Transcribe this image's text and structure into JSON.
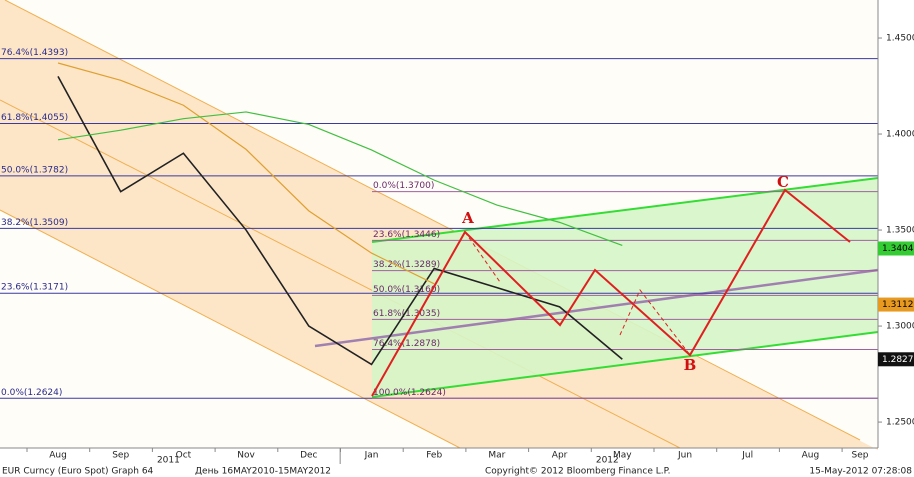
{
  "chart_data": {
    "type": "line",
    "categories": [
      "Aug",
      "Sep",
      "Oct",
      "Nov",
      "Dec",
      "Jan",
      "Feb",
      "Mar",
      "Apr",
      "May",
      "Jun",
      "Jul",
      "Aug",
      "Sep"
    ],
    "year_labels": [
      "2011",
      "2012"
    ],
    "series": [
      {
        "name": "EUR Curncy (Euro Spot)",
        "color": "#222222",
        "values": [
          1.43,
          1.37,
          1.39,
          1.35,
          1.3,
          1.28,
          1.33,
          1.32,
          1.31,
          1.2827,
          null,
          null,
          null,
          null
        ]
      },
      {
        "name": "MA orange",
        "color": "#e0a030",
        "values": [
          1.437,
          1.428,
          1.415,
          1.392,
          1.36,
          1.338,
          1.322,
          null,
          null,
          null,
          null,
          null,
          null,
          null
        ]
      },
      {
        "name": "MA green",
        "color": "#40c040",
        "values": [
          1.397,
          1.402,
          1.408,
          1.4115,
          1.405,
          1.3917,
          1.376,
          1.363,
          1.354,
          1.342,
          null,
          null,
          null,
          null
        ]
      }
    ],
    "ylim": [
      1.2365,
      1.4698
    ],
    "yticks": [
      {
        "value": 1.25,
        "label": "1.2500"
      },
      {
        "value": 1.3,
        "label": "1.3000"
      },
      {
        "value": 1.35,
        "label": "1.3500"
      },
      {
        "value": 1.4,
        "label": "1.4000"
      },
      {
        "value": 1.45,
        "label": "1.4500"
      }
    ],
    "fib_left": [
      {
        "label": "76.4%(1.4393)",
        "value": 1.4393
      },
      {
        "label": "61.8%(1.4055)",
        "value": 1.4055
      },
      {
        "label": "50.0%(1.3782)",
        "value": 1.3782
      },
      {
        "label": "38.2%(1.3509)",
        "value": 1.3509
      },
      {
        "label": "23.6%(1.3171)",
        "value": 1.3171
      },
      {
        "label": "0.0%(1.2624)",
        "value": 1.2624
      }
    ],
    "fib_right": [
      {
        "label": "0.0%(1.3700)",
        "value": 1.37
      },
      {
        "label": "23.6%(1.3446)",
        "value": 1.3446
      },
      {
        "label": "38.2%(1.3289)",
        "value": 1.3289
      },
      {
        "label": "50.0%(1.3160)",
        "value": 1.316
      },
      {
        "label": "61.8%(1.3035)",
        "value": 1.3035
      },
      {
        "label": "76.4%(1.2878)",
        "value": 1.2878
      },
      {
        "label": "100.0%(1.2624)",
        "value": 1.2624
      }
    ],
    "price_tags": {
      "values": [
        1.3404,
        1.3112,
        1.2827
      ],
      "colors": [
        "#33cc33",
        "#e89a20",
        "#111111"
      ]
    },
    "annotations": [
      "A",
      "B",
      "C"
    ],
    "footer": [
      "EUR Curncy (Euro Spot) Graph 64",
      "День 16MAY2010-15MAY2012",
      "Copyright© 2012 Bloomberg Finance L.P.",
      "15-May-2012 07:28:08"
    ]
  }
}
